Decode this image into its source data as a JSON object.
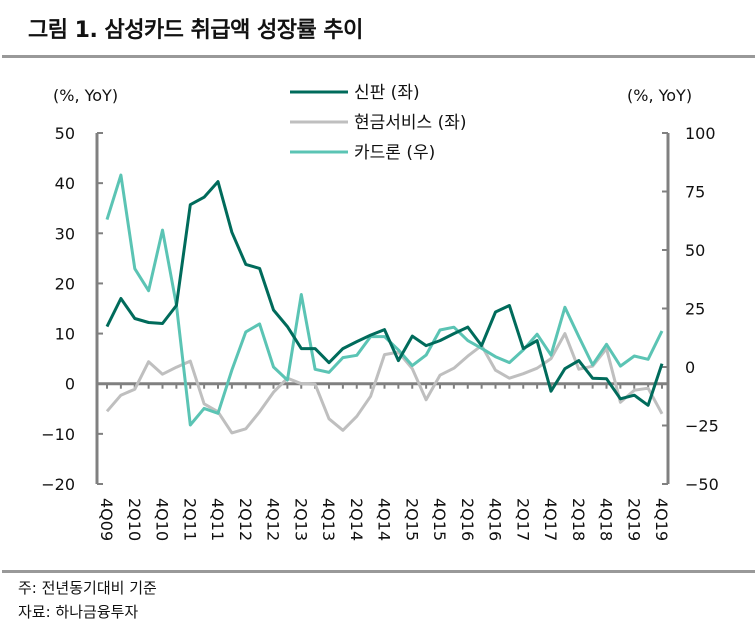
{
  "title": "그림 1. 삼성카드 취급액 성장률 추이",
  "footnote": "주: 전년동기대비 기준",
  "source": "자료: 하나금융투자",
  "chart_data": {
    "type": "line",
    "title": "그림 1. 삼성카드 취급액 성장률 추이",
    "ylabel_left": "(%, YoY)",
    "ylabel_right": "(%, YoY)",
    "ylim_left": [
      -20,
      50
    ],
    "yticks_left": [
      -20,
      -10,
      0,
      10,
      20,
      30,
      40,
      50
    ],
    "ylim_right": [
      -50,
      100
    ],
    "yticks_right": [
      -50,
      -25,
      0,
      25,
      50,
      75,
      100
    ],
    "legend_position": "top-center",
    "grid": false,
    "categories": [
      "4Q09",
      "1Q10",
      "2Q10",
      "3Q10",
      "4Q10",
      "1Q11",
      "2Q11",
      "3Q11",
      "4Q11",
      "1Q12",
      "2Q12",
      "3Q12",
      "4Q12",
      "1Q13",
      "2Q13",
      "3Q13",
      "4Q13",
      "1Q14",
      "2Q14",
      "3Q14",
      "4Q14",
      "1Q15",
      "2Q15",
      "3Q15",
      "4Q15",
      "1Q16",
      "2Q16",
      "3Q16",
      "4Q16",
      "1Q17",
      "2Q17",
      "3Q17",
      "4Q17",
      "1Q18",
      "2Q18",
      "3Q18",
      "4Q18",
      "1Q19",
      "2Q19",
      "3Q19",
      "4Q19"
    ],
    "xtick_labels": [
      "4Q09",
      "2Q10",
      "4Q10",
      "2Q11",
      "4Q11",
      "2Q12",
      "4Q12",
      "2Q13",
      "4Q13",
      "2Q14",
      "4Q14",
      "2Q15",
      "4Q15",
      "2Q16",
      "4Q16",
      "2Q17",
      "4Q17",
      "2Q18",
      "4Q18",
      "2Q19",
      "4Q19"
    ],
    "series": [
      {
        "name": "신판 (좌)",
        "axis": "left",
        "color": "#006B5B",
        "values": [
          11.4,
          17,
          13,
          12.2,
          12,
          15.6,
          35.7,
          37.2,
          40.3,
          30.2,
          23.8,
          23,
          14.7,
          11.4,
          7,
          7,
          4.2,
          7,
          8.4,
          9.7,
          10.8,
          4.6,
          9.5,
          7.6,
          8.6,
          10,
          11.3,
          7.6,
          14.3,
          15.6,
          7,
          8.6,
          -1.5,
          3,
          4.6,
          1.1,
          1,
          -3,
          -2.3,
          -4.3,
          4
        ]
      },
      {
        "name": "현금서비스 (좌)",
        "axis": "left",
        "color": "#BFBFBF",
        "values": [
          -5.5,
          -2.3,
          -1.1,
          4.4,
          1.9,
          3.3,
          4.5,
          -4,
          -5.6,
          -9.8,
          -9,
          -5.6,
          -1.7,
          1.1,
          0,
          -0.1,
          -7,
          -9.3,
          -6.5,
          -2.5,
          5.8,
          6.3,
          3,
          -3.2,
          1.7,
          3.1,
          5.5,
          7.6,
          2.7,
          1.1,
          2,
          3.1,
          5,
          10,
          2.9,
          3.5,
          7,
          -3.7,
          -1.3,
          -0.9,
          -6
        ]
      },
      {
        "name": "카드론 (우)",
        "axis": "right",
        "color": "#5BC4B4",
        "values": [
          63,
          82,
          42,
          32.6,
          58.5,
          26.5,
          -24.8,
          -17.7,
          -19.8,
          -1.3,
          15,
          18.4,
          0,
          -5.6,
          31,
          -1,
          -2.3,
          4,
          5,
          13,
          13,
          7.3,
          0.6,
          5.1,
          15.8,
          17,
          11.3,
          8,
          4.4,
          1.9,
          7.3,
          14,
          5.1,
          25.5,
          13,
          0.9,
          9.7,
          0.4,
          4.7,
          3.3,
          15.4
        ]
      }
    ]
  }
}
